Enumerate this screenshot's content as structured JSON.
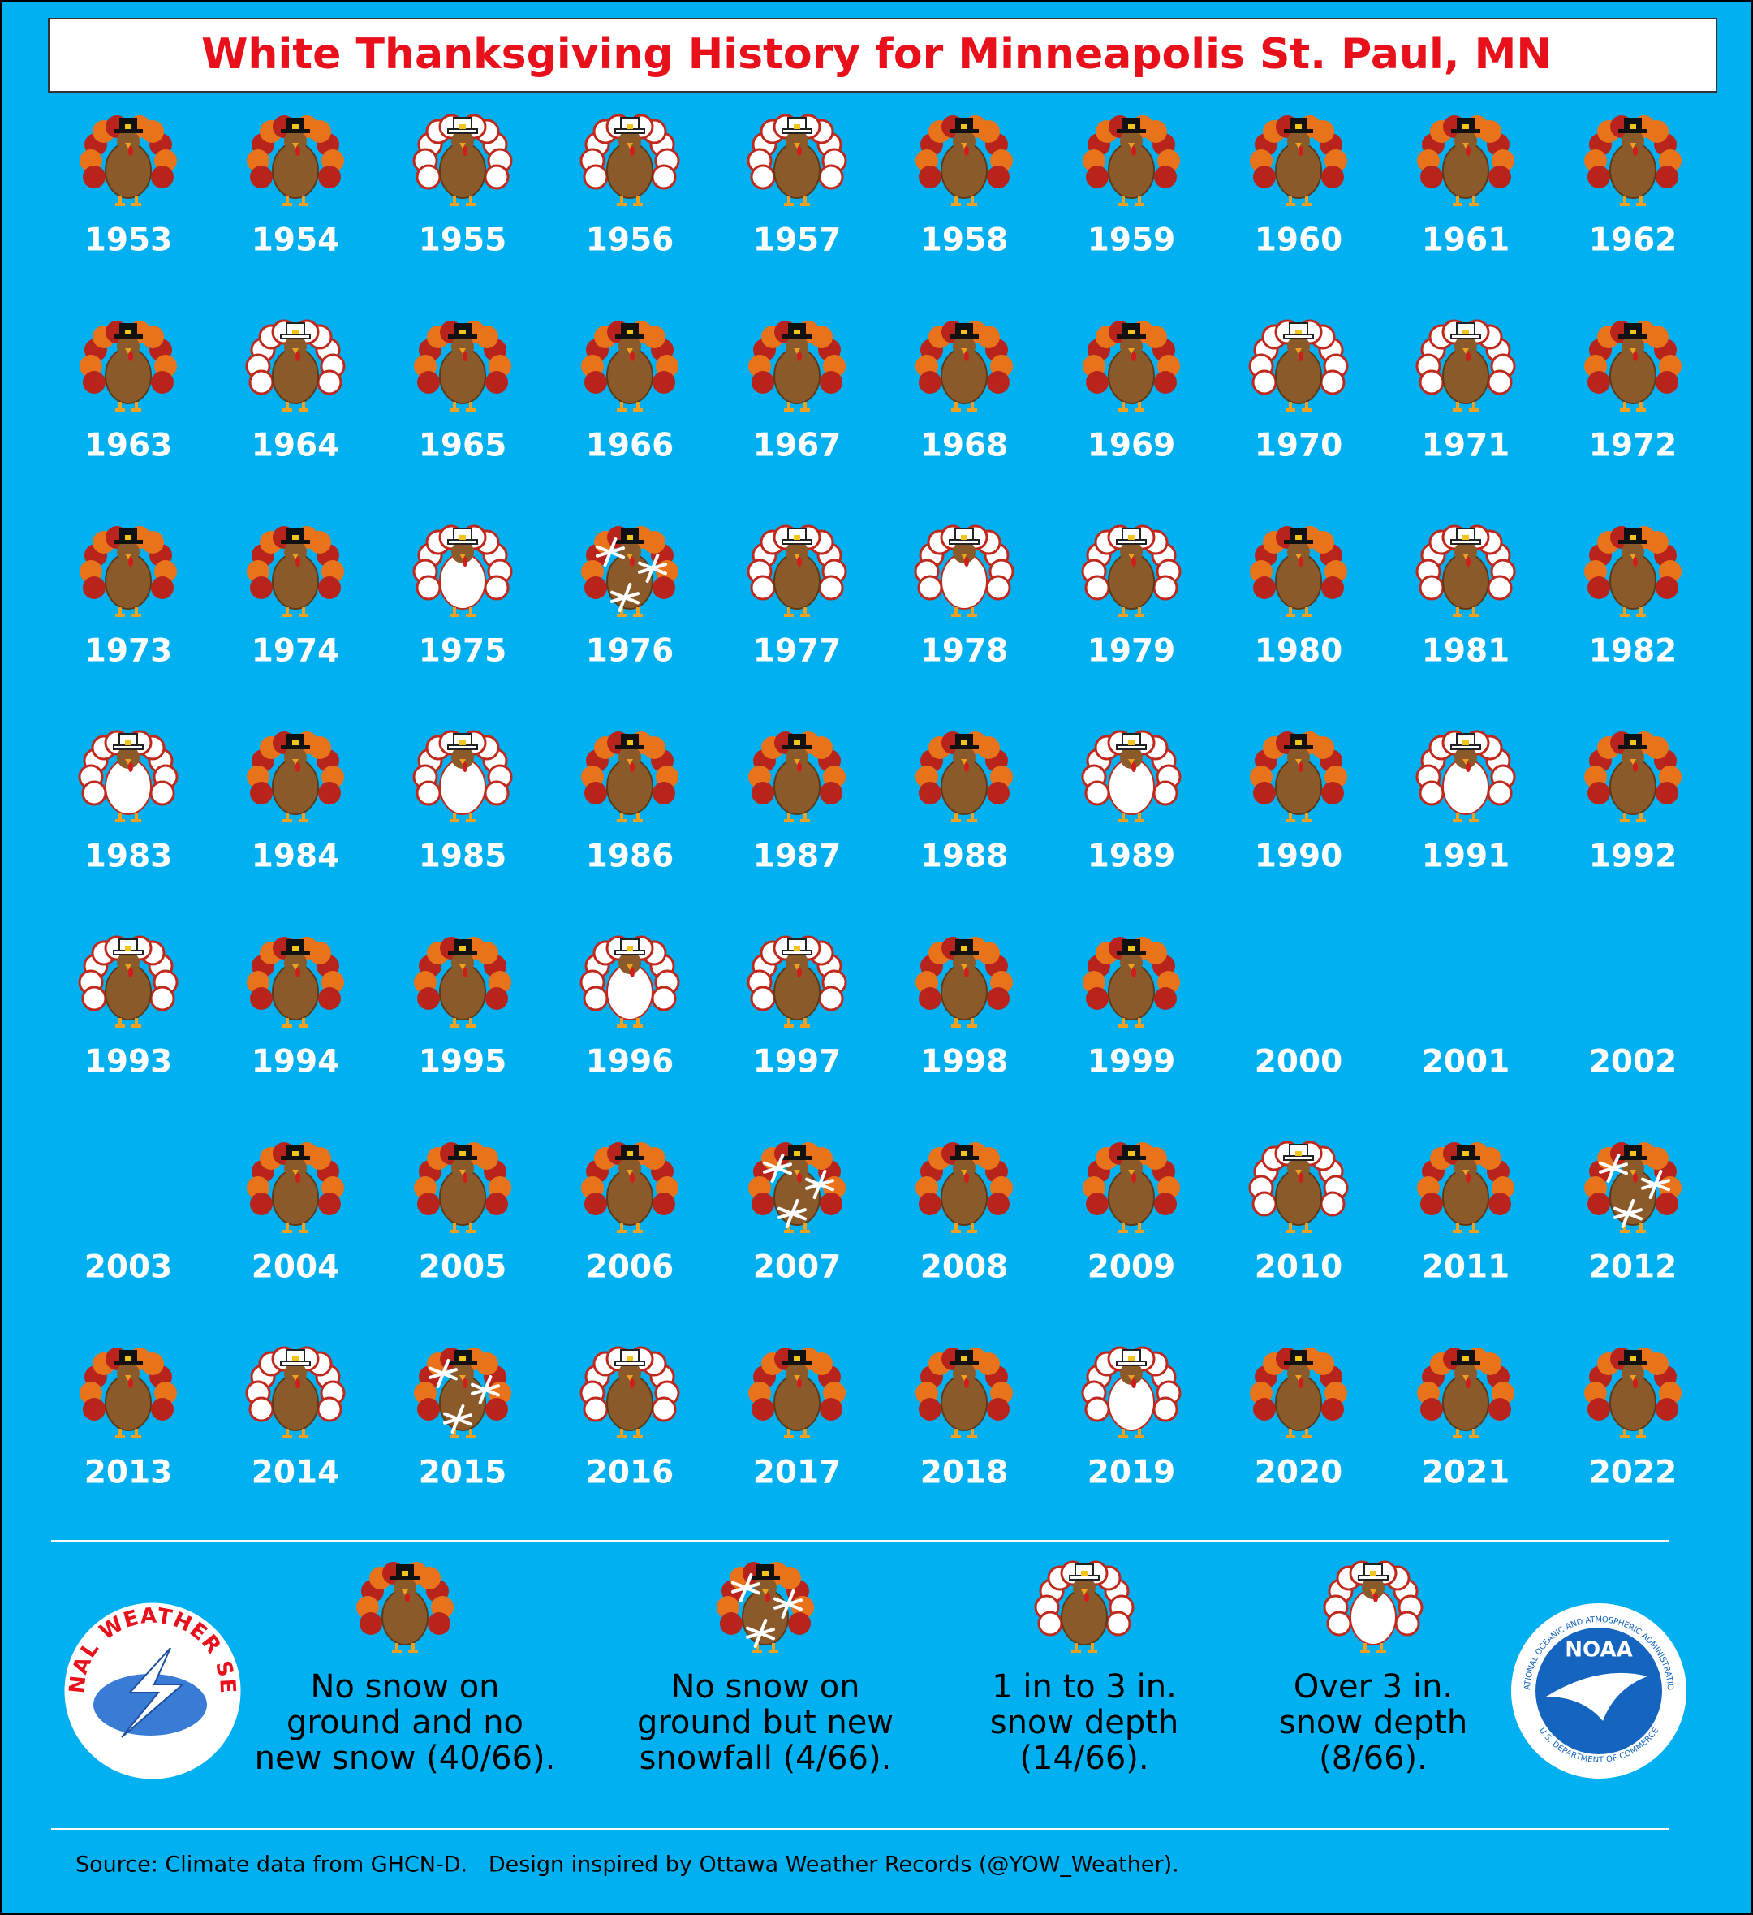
{
  "title": "White Thanksgiving History for Minneapolis St. Paul, MN",
  "years": [
    {
      "label": "1953",
      "kind": 0
    },
    {
      "label": "1954",
      "kind": 0
    },
    {
      "label": "1955",
      "kind": 2
    },
    {
      "label": "1956",
      "kind": 2
    },
    {
      "label": "1957",
      "kind": 2
    },
    {
      "label": "1958",
      "kind": 0
    },
    {
      "label": "1959",
      "kind": 0
    },
    {
      "label": "1960",
      "kind": 0
    },
    {
      "label": "1961",
      "kind": 0
    },
    {
      "label": "1962",
      "kind": 0
    },
    {
      "label": "1963",
      "kind": 0
    },
    {
      "label": "1964",
      "kind": 2
    },
    {
      "label": "1965",
      "kind": 0
    },
    {
      "label": "1966",
      "kind": 0
    },
    {
      "label": "1967",
      "kind": 0
    },
    {
      "label": "1968",
      "kind": 0
    },
    {
      "label": "1969",
      "kind": 0
    },
    {
      "label": "1970",
      "kind": 2
    },
    {
      "label": "1971",
      "kind": 2
    },
    {
      "label": "1972",
      "kind": 0
    },
    {
      "label": "1973",
      "kind": 0
    },
    {
      "label": "1974",
      "kind": 0
    },
    {
      "label": "1975",
      "kind": 3
    },
    {
      "label": "1976",
      "kind": 1
    },
    {
      "label": "1977",
      "kind": 2
    },
    {
      "label": "1978",
      "kind": 3
    },
    {
      "label": "1979",
      "kind": 2
    },
    {
      "label": "1980",
      "kind": 0
    },
    {
      "label": "1981",
      "kind": 2
    },
    {
      "label": "1982",
      "kind": 0
    },
    {
      "label": "1983",
      "kind": 3
    },
    {
      "label": "1984",
      "kind": 0
    },
    {
      "label": "1985",
      "kind": 3
    },
    {
      "label": "1986",
      "kind": 0
    },
    {
      "label": "1987",
      "kind": 0
    },
    {
      "label": "1988",
      "kind": 0
    },
    {
      "label": "1989",
      "kind": 3
    },
    {
      "label": "1990",
      "kind": 0
    },
    {
      "label": "1991",
      "kind": 3
    },
    {
      "label": "1992",
      "kind": 0
    },
    {
      "label": "1993",
      "kind": 2
    },
    {
      "label": "1994",
      "kind": 0
    },
    {
      "label": "1995",
      "kind": 0
    },
    {
      "label": "1996",
      "kind": 3
    },
    {
      "label": "1997",
      "kind": 2
    },
    {
      "label": "1998",
      "kind": 0
    },
    {
      "label": "1999",
      "kind": 0
    },
    {
      "label": "2000",
      "kind": null
    },
    {
      "label": "2001",
      "kind": null
    },
    {
      "label": "2002",
      "kind": null
    },
    {
      "label": "2003",
      "kind": null
    },
    {
      "label": "2004",
      "kind": 0
    },
    {
      "label": "2005",
      "kind": 0
    },
    {
      "label": "2006",
      "kind": 0
    },
    {
      "label": "2007",
      "kind": 1
    },
    {
      "label": "2008",
      "kind": 0
    },
    {
      "label": "2009",
      "kind": 0
    },
    {
      "label": "2010",
      "kind": 2
    },
    {
      "label": "2011",
      "kind": 0
    },
    {
      "label": "2012",
      "kind": 1
    },
    {
      "label": "2013",
      "kind": 0
    },
    {
      "label": "2014",
      "kind": 2
    },
    {
      "label": "2015",
      "kind": 1
    },
    {
      "label": "2016",
      "kind": 2
    },
    {
      "label": "2017",
      "kind": 0
    },
    {
      "label": "2018",
      "kind": 0
    },
    {
      "label": "2019",
      "kind": 3
    },
    {
      "label": "2020",
      "kind": 0
    },
    {
      "label": "2021",
      "kind": 0
    },
    {
      "label": "2022",
      "kind": 0
    }
  ],
  "legend": [
    {
      "lines": [
        "No snow on",
        "ground and no",
        "new snow (40/66)."
      ]
    },
    {
      "lines": [
        "No snow on",
        "ground but new",
        "snowfall (4/66)."
      ]
    },
    {
      "lines": [
        "1 in to 3 in.",
        "snow depth",
        "(14/66)."
      ]
    },
    {
      "lines": [
        "Over 3 in.",
        "snow depth",
        "(8/66)."
      ]
    }
  ],
  "logos": {
    "nws": "NATIONAL WEATHER SERVICE",
    "noaa": "NOAA",
    "noaa_top": "NATIONAL OCEANIC AND ATMOSPHERIC ADMINISTRATION",
    "noaa_bottom": "U.S. DEPARTMENT OF COMMERCE"
  },
  "source": "Source: Climate data from GHCN-D.   Design inspired by Ottawa Weather Records (@YOW_Weather)."
}
